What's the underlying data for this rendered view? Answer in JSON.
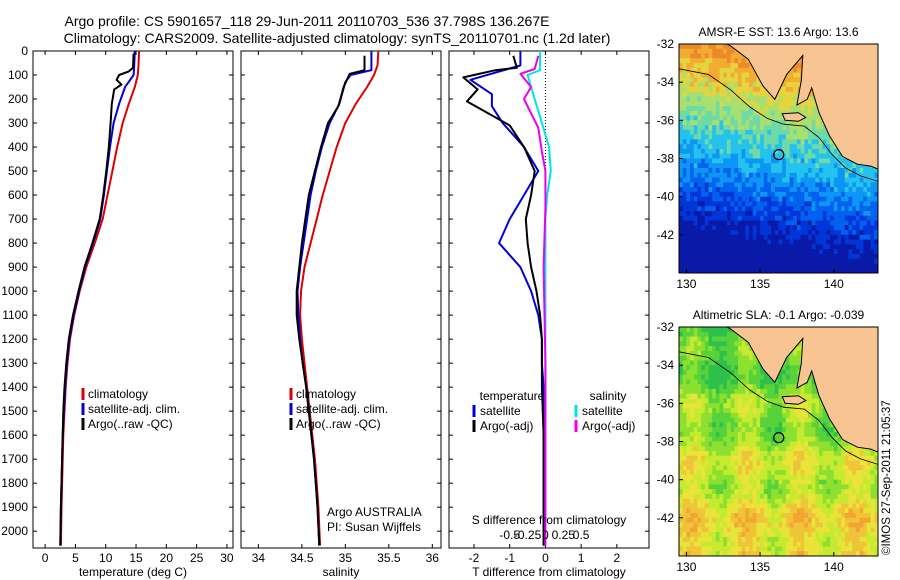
{
  "header": {
    "line1": "Argo profile: CS 5901657_118 29-Jun-2011 20110703_536 37.798S 136.267E",
    "line2": "Climatology: CARS2009. Satellite-adjusted climatology: synTS_20110701.nc (1.2d later)"
  },
  "colors": {
    "climatology": "#dd0000",
    "satellite": "#0000dd",
    "argo": "#000000",
    "salinity_satellite": "#00e5e5",
    "salinity_argo": "#ee00ee",
    "land": "#f7c492",
    "coast": "#000000"
  },
  "credit": "©IMOS 27-Sep-2011 21:05:37",
  "chart_data": [
    {
      "type": "line",
      "id": "temperature",
      "xlabel": "temperature (deg C)",
      "xlim": [
        -2,
        31
      ],
      "ylim": [
        0,
        2070
      ],
      "xticks": [
        0,
        5,
        10,
        15,
        20,
        25,
        30
      ],
      "yticks": [
        0,
        100,
        200,
        300,
        400,
        500,
        600,
        700,
        800,
        900,
        1000,
        1100,
        1200,
        1300,
        1400,
        1500,
        1600,
        1700,
        1800,
        1900,
        2000
      ],
      "legend": [
        "climatology",
        "satellite-adj. clim.",
        "Argo(..raw -QC)"
      ],
      "series": [
        {
          "name": "climatology",
          "color": "#dd0000",
          "points": [
            [
              15.5,
              0
            ],
            [
              15.4,
              60
            ],
            [
              15.3,
              100
            ],
            [
              14.8,
              150
            ],
            [
              13.8,
              220
            ],
            [
              12.8,
              300
            ],
            [
              11.9,
              400
            ],
            [
              11.1,
              500
            ],
            [
              10.3,
              600
            ],
            [
              9.5,
              700
            ],
            [
              8.2,
              800
            ],
            [
              6.8,
              900
            ],
            [
              5.7,
              1000
            ],
            [
              4.8,
              1100
            ],
            [
              4.1,
              1200
            ],
            [
              3.7,
              1300
            ],
            [
              3.4,
              1400
            ],
            [
              3.2,
              1500
            ],
            [
              3.0,
              1600
            ],
            [
              2.9,
              1700
            ],
            [
              2.8,
              1800
            ],
            [
              2.7,
              1900
            ],
            [
              2.6,
              2060
            ]
          ]
        },
        {
          "name": "satellite-adj. clim.",
          "color": "#0000dd",
          "points": [
            [
              14.8,
              0
            ],
            [
              14.7,
              60
            ],
            [
              14.6,
              100
            ],
            [
              13.2,
              150
            ],
            [
              12.2,
              220
            ],
            [
              11.3,
              300
            ],
            [
              10.7,
              400
            ],
            [
              10.2,
              500
            ],
            [
              9.7,
              600
            ],
            [
              9.1,
              700
            ],
            [
              7.9,
              800
            ],
            [
              6.6,
              900
            ],
            [
              5.6,
              1000
            ],
            [
              4.7,
              1100
            ],
            [
              4.0,
              1200
            ],
            [
              3.6,
              1300
            ],
            [
              3.3,
              1400
            ],
            [
              3.1,
              1500
            ],
            [
              2.9,
              1600
            ],
            [
              2.8,
              1700
            ],
            [
              2.7,
              1800
            ],
            [
              2.6,
              1900
            ],
            [
              2.5,
              2060
            ]
          ]
        },
        {
          "name": "Argo(..raw -QC)",
          "color": "#000000",
          "points": [
            [
              14.6,
              10
            ],
            [
              14.5,
              70
            ],
            [
              13.8,
              85
            ],
            [
              12.2,
              100
            ],
            [
              11.8,
              120
            ],
            [
              12.6,
              140
            ],
            [
              11.4,
              160
            ],
            [
              11.0,
              220
            ],
            [
              10.8,
              300
            ],
            [
              10.5,
              400
            ],
            [
              10.1,
              500
            ],
            [
              9.6,
              600
            ],
            [
              9.0,
              700
            ],
            [
              7.8,
              800
            ],
            [
              6.5,
              900
            ],
            [
              5.5,
              1000
            ],
            [
              4.6,
              1100
            ],
            [
              3.9,
              1200
            ],
            [
              3.5,
              1300
            ],
            [
              3.2,
              1400
            ],
            [
              3.0,
              1500
            ],
            [
              2.9,
              1600
            ],
            [
              2.8,
              1700
            ],
            [
              2.7,
              1800
            ],
            [
              2.6,
              1900
            ],
            [
              2.5,
              2060
            ]
          ]
        }
      ]
    },
    {
      "type": "line",
      "id": "salinity",
      "xlabel": "salinity",
      "xlim": [
        33.8,
        36.1
      ],
      "ylim": [
        0,
        2070
      ],
      "xticks": [
        34,
        34.5,
        35,
        35.5,
        36
      ],
      "xticklabels": [
        "34",
        "34.5",
        "35",
        "35.5",
        "36"
      ],
      "legend": [
        "climatology",
        "satellite-adj. clim.",
        "Argo(..raw -QC)"
      ],
      "annotation": [
        "Argo AUSTRALIA",
        "PI: Susan Wijffels"
      ],
      "series": [
        {
          "name": "climatology",
          "color": "#dd0000",
          "points": [
            [
              35.38,
              0
            ],
            [
              35.37,
              60
            ],
            [
              35.33,
              100
            ],
            [
              35.25,
              150
            ],
            [
              35.12,
              220
            ],
            [
              35.0,
              300
            ],
            [
              34.9,
              400
            ],
            [
              34.82,
              500
            ],
            [
              34.74,
              600
            ],
            [
              34.67,
              700
            ],
            [
              34.6,
              800
            ],
            [
              34.53,
              900
            ],
            [
              34.49,
              1000
            ],
            [
              34.48,
              1100
            ],
            [
              34.5,
              1200
            ],
            [
              34.53,
              1300
            ],
            [
              34.56,
              1400
            ],
            [
              34.59,
              1500
            ],
            [
              34.62,
              1600
            ],
            [
              34.65,
              1700
            ],
            [
              34.67,
              1800
            ],
            [
              34.69,
              1900
            ],
            [
              34.71,
              2060
            ]
          ]
        },
        {
          "name": "satellite-adj. clim.",
          "color": "#0000dd",
          "points": [
            [
              35.3,
              0
            ],
            [
              35.3,
              80
            ],
            [
              35.06,
              100
            ],
            [
              35.0,
              130
            ],
            [
              34.93,
              220
            ],
            [
              34.82,
              300
            ],
            [
              34.73,
              400
            ],
            [
              34.66,
              500
            ],
            [
              34.6,
              600
            ],
            [
              34.56,
              700
            ],
            [
              34.52,
              800
            ],
            [
              34.48,
              900
            ],
            [
              34.45,
              1000
            ],
            [
              34.46,
              1100
            ],
            [
              34.48,
              1200
            ],
            [
              34.51,
              1300
            ],
            [
              34.55,
              1400
            ],
            [
              34.58,
              1500
            ],
            [
              34.61,
              1600
            ],
            [
              34.64,
              1700
            ],
            [
              34.66,
              1800
            ],
            [
              34.68,
              1900
            ],
            [
              34.7,
              2060
            ]
          ]
        },
        {
          "name": "Argo(..raw -QC)",
          "color": "#000000",
          "points": [
            [
              35.22,
              20
            ],
            [
              35.22,
              80
            ],
            [
              35.05,
              95
            ],
            [
              34.98,
              150
            ],
            [
              34.92,
              230
            ],
            [
              34.8,
              300
            ],
            [
              34.72,
              400
            ],
            [
              34.65,
              500
            ],
            [
              34.58,
              600
            ],
            [
              34.54,
              700
            ],
            [
              34.5,
              800
            ],
            [
              34.47,
              900
            ],
            [
              34.44,
              1000
            ],
            [
              34.44,
              1100
            ],
            [
              34.47,
              1200
            ],
            [
              34.51,
              1300
            ],
            [
              34.55,
              1400
            ],
            [
              34.58,
              1500
            ],
            [
              34.61,
              1600
            ],
            [
              34.64,
              1700
            ],
            [
              34.66,
              1800
            ],
            [
              34.68,
              1900
            ],
            [
              34.7,
              2060
            ]
          ]
        }
      ]
    },
    {
      "type": "line",
      "id": "difference",
      "xlabel": "T difference from climatology",
      "xlabel_top": "S difference from climatology",
      "xlim": [
        -2.7,
        2.9
      ],
      "ylim": [
        0,
        2070
      ],
      "xticks": [
        -2,
        -1,
        0,
        1,
        2
      ],
      "xticklabels": [
        "-2",
        "-1",
        "0",
        "1",
        "2"
      ],
      "sticks": [
        -1.0,
        -0.5,
        0,
        0.5,
        1.0
      ],
      "sticklabels": [
        "-0.5",
        "-0.25",
        "0",
        "0.25",
        "0.5"
      ],
      "legend_temperature_title": "temperature",
      "legend_salinity_title": "salinity",
      "legend_temperature": [
        "satellite",
        "Argo(-adj)"
      ],
      "legend_salinity": [
        "satellite",
        "Argo(-adj)"
      ],
      "series": [
        {
          "name": "temperature satellite",
          "color": "#0000dd",
          "points": [
            [
              -0.7,
              0
            ],
            [
              -0.7,
              60
            ],
            [
              -2.1,
              120
            ],
            [
              -1.5,
              180
            ],
            [
              -1.5,
              230
            ],
            [
              -1.2,
              300
            ],
            [
              -0.6,
              400
            ],
            [
              -0.2,
              500
            ],
            [
              -0.6,
              600
            ],
            [
              -1.0,
              700
            ],
            [
              -1.3,
              800
            ],
            [
              -0.7,
              900
            ],
            [
              -0.4,
              1000
            ],
            [
              -0.2,
              1100
            ],
            [
              -0.1,
              1200
            ],
            [
              -0.1,
              1300
            ],
            [
              -0.05,
              1400
            ],
            [
              -0.05,
              1500
            ],
            [
              -0.05,
              1700
            ],
            [
              -0.05,
              1900
            ],
            [
              -0.05,
              2060
            ]
          ]
        },
        {
          "name": "temperature Argo",
          "color": "#000000",
          "points": [
            [
              -0.9,
              20
            ],
            [
              -0.8,
              70
            ],
            [
              -1.4,
              80
            ],
            [
              -2.3,
              110
            ],
            [
              -1.9,
              160
            ],
            [
              -2.2,
              210
            ],
            [
              -1.6,
              260
            ],
            [
              -1.0,
              310
            ],
            [
              -0.6,
              400
            ],
            [
              -0.3,
              500
            ],
            [
              -0.4,
              600
            ],
            [
              -0.55,
              700
            ],
            [
              -0.5,
              800
            ],
            [
              -0.4,
              900
            ],
            [
              -0.25,
              1000
            ],
            [
              -0.15,
              1100
            ],
            [
              -0.1,
              1200
            ],
            [
              -0.1,
              1400
            ],
            [
              -0.05,
              1600
            ],
            [
              -0.05,
              1800
            ],
            [
              -0.05,
              2060
            ]
          ]
        },
        {
          "name": "salinity satellite",
          "color": "#00e5e5",
          "points": [
            [
              -0.15,
              0
            ],
            [
              -0.15,
              80
            ],
            [
              -0.5,
              100
            ],
            [
              -0.4,
              150
            ],
            [
              -0.2,
              250
            ],
            [
              -0.1,
              300
            ],
            [
              0.1,
              400
            ],
            [
              0.15,
              500
            ],
            [
              0.05,
              600
            ],
            [
              0.0,
              700
            ],
            [
              0.0,
              900
            ],
            [
              0.0,
              1200
            ],
            [
              0.0,
              1500
            ],
            [
              0.0,
              2060
            ]
          ]
        },
        {
          "name": "salinity Argo",
          "color": "#ee00ee",
          "points": [
            [
              -0.2,
              20
            ],
            [
              -0.3,
              75
            ],
            [
              -0.7,
              95
            ],
            [
              -0.4,
              150
            ],
            [
              -0.6,
              200
            ],
            [
              -0.4,
              260
            ],
            [
              -0.2,
              320
            ],
            [
              -0.1,
              420
            ],
            [
              0.0,
              500
            ],
            [
              0.0,
              650
            ],
            [
              -0.05,
              900
            ],
            [
              0.0,
              1300
            ],
            [
              0.0,
              2060
            ]
          ]
        }
      ]
    },
    {
      "type": "heatmap",
      "id": "sst_map",
      "title": "AMSR-E SST: 13.6 Argo: 13.6",
      "xlim": [
        129.5,
        143
      ],
      "ylim": [
        -44,
        -32
      ],
      "xticks": [
        130,
        135,
        140
      ],
      "yticks": [
        -32,
        -34,
        -36,
        -38,
        -40,
        -42
      ],
      "marker": [
        136.267,
        -37.798
      ]
    },
    {
      "type": "heatmap",
      "id": "sla_map",
      "title": "Altimetric SLA: -0.1 Argo: -0.039",
      "xlim": [
        129.5,
        143
      ],
      "ylim": [
        -44,
        -32
      ],
      "xticks": [
        130,
        135,
        140
      ],
      "yticks": [
        -32,
        -34,
        -36,
        -38,
        -40,
        -42
      ],
      "marker": [
        136.267,
        -37.798
      ]
    }
  ]
}
